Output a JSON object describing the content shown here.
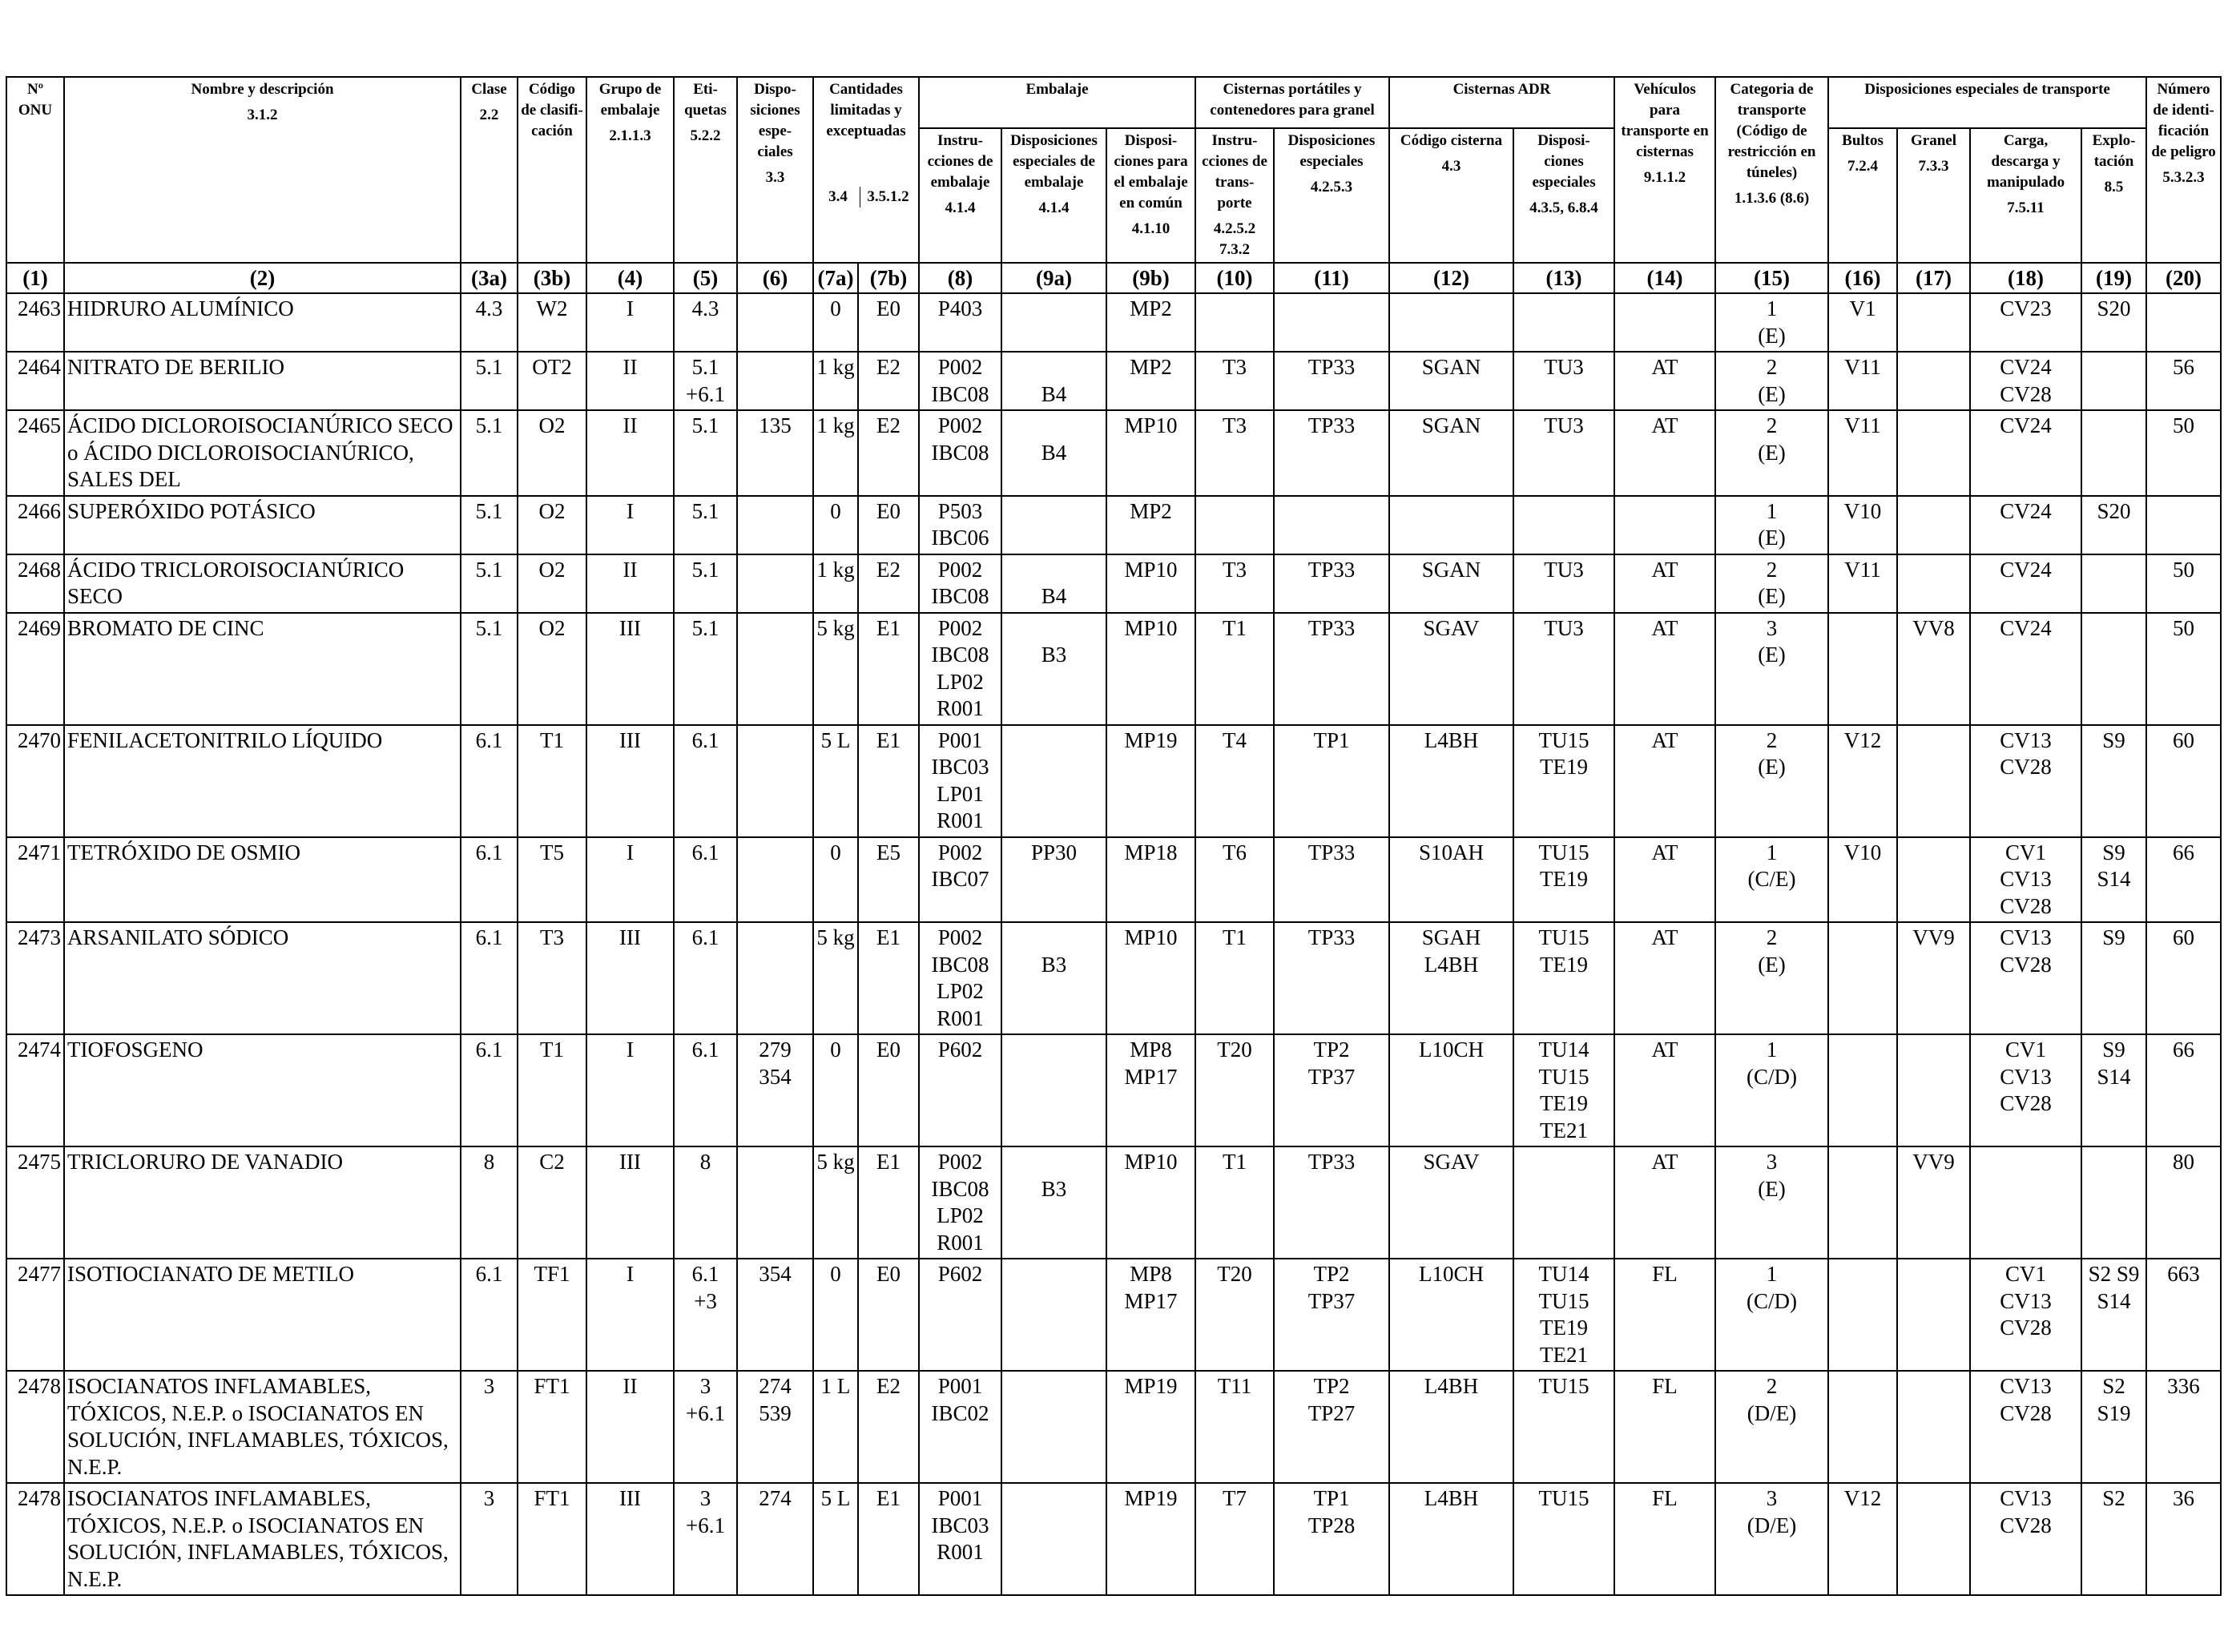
{
  "headers": {
    "onu": "Nº ONU",
    "nombre": "Nombre y descripción",
    "clase": "Clase",
    "codigo": "Código de clasifi- cación",
    "grupo": "Grupo de embalaje",
    "etiquetas": "Eti- quetas",
    "disposiciones": "Dispo- siciones espe- ciales",
    "cantidades": "Cantidades limitadas y exceptuadas",
    "embalaje": "Embalaje",
    "instrucciones": "Instru- cciones de embalaje",
    "disp_embalaje": "Disposiciones especiales de embalaje",
    "disp_comun": "Disposi- ciones para el embalaje en común",
    "cisternas_portatiles": "Cisternas portátiles y contenedores para granel",
    "instr_transporte": "Instru- cciones de trans- porte",
    "disp_especiales": "Disposiciones especiales",
    "cisternas_adr": "Cisternas ADR",
    "codigo_cisterna": "Código cisterna",
    "disp_cisterna": "Disposi- ciones especiales",
    "vehiculos": "Vehículos para transporte en cisternas",
    "categoria": "Categoria de transporte (Código de restricción en túneles)",
    "disp_transporte": "Disposiciones especiales de transporte",
    "bultos": "Bultos",
    "granel": "Granel",
    "carga": "Carga, descarga y manipulado",
    "explotacion": "Explo- tación",
    "numero_peligro": "Número de identi- ficación de peligro"
  },
  "refs": [
    "",
    "3.1.2",
    "2.2",
    "",
    "2.1.1.3",
    "5.2.2",
    "3.3",
    "3.4",
    "3.5.1.2",
    "4.1.4",
    "4.1.4",
    "4.1.10",
    "4.2.5.2 7.3.2",
    "4.2.5.3",
    "4.3",
    "4.3.5, 6.8.4",
    "9.1.1.2",
    "1.1.3.6 (8.6)",
    "7.2.4",
    "7.3.3",
    "7.5.11",
    "8.5",
    "5.3.2.3"
  ],
  "colnums": [
    "(1)",
    "(2)",
    "(3a)",
    "(3b)",
    "(4)",
    "(5)",
    "(6)",
    "(7a)",
    "(7b)",
    "(8)",
    "(9a)",
    "(9b)",
    "(10)",
    "(11)",
    "(12)",
    "(13)",
    "(14)",
    "(15)",
    "(16)",
    "(17)",
    "(18)",
    "(19)",
    "(20)"
  ],
  "rows": [
    [
      "2463",
      "HIDRURO ALUMÍNICO",
      "4.3",
      "W2",
      "I",
      "4.3",
      "",
      "0",
      "E0",
      "P403",
      "",
      "MP2",
      "",
      "",
      "",
      "",
      "",
      "1\n(E)",
      "V1",
      "",
      "CV23",
      "S20",
      ""
    ],
    [
      "2464",
      "NITRATO DE BERILIO",
      "5.1",
      "OT2",
      "II",
      "5.1\n+6.1",
      "",
      "1 kg",
      "E2",
      "P002\nIBC08",
      "\nB4",
      "MP2",
      "T3",
      "TP33",
      "SGAN",
      "TU3",
      "AT",
      "2\n(E)",
      "V11",
      "",
      "CV24\nCV28",
      "",
      "56"
    ],
    [
      "2465",
      "ÁCIDO DICLOROISOCIANÚRICO SECO o ÁCIDO DICLOROISOCIANÚRICO, SALES DEL",
      "5.1",
      "O2",
      "II",
      "5.1",
      "135",
      "1 kg",
      "E2",
      "P002\nIBC08",
      "\nB4",
      "MP10",
      "T3",
      "TP33",
      "SGAN",
      "TU3",
      "AT",
      "2\n(E)",
      "V11",
      "",
      "CV24",
      "",
      "50"
    ],
    [
      "2466",
      "SUPERÓXIDO POTÁSICO",
      "5.1",
      "O2",
      "I",
      "5.1",
      "",
      "0",
      "E0",
      "P503\nIBC06",
      "",
      "MP2",
      "",
      "",
      "",
      "",
      "",
      "1\n(E)",
      "V10",
      "",
      "CV24",
      "S20",
      ""
    ],
    [
      "2468",
      "ÁCIDO TRICLOROISOCIANÚRICO SECO",
      "5.1",
      "O2",
      "II",
      "5.1",
      "",
      "1 kg",
      "E2",
      "P002\nIBC08",
      "\nB4",
      "MP10",
      "T3",
      "TP33",
      "SGAN",
      "TU3",
      "AT",
      "2\n(E)",
      "V11",
      "",
      "CV24",
      "",
      "50"
    ],
    [
      "2469",
      "BROMATO DE CINC",
      "5.1",
      "O2",
      "III",
      "5.1",
      "",
      "5 kg",
      "E1",
      "P002\nIBC08\nLP02\nR001",
      "\nB3",
      "MP10",
      "T1",
      "TP33",
      "SGAV",
      "TU3",
      "AT",
      "3\n(E)",
      "",
      "VV8",
      "CV24",
      "",
      "50"
    ],
    [
      "2470",
      "FENILACETONITRILO LÍQUIDO",
      "6.1",
      "T1",
      "III",
      "6.1",
      "",
      "5 L",
      "E1",
      "P001\nIBC03\nLP01\nR001",
      "",
      "MP19",
      "T4",
      "TP1",
      "L4BH",
      "TU15\nTE19",
      "AT",
      "2\n(E)",
      "V12",
      "",
      "CV13\nCV28",
      "S9",
      "60"
    ],
    [
      "2471",
      "TETRÓXIDO DE OSMIO",
      "6.1",
      "T5",
      "I",
      "6.1",
      "",
      "0",
      "E5",
      "P002\nIBC07",
      "PP30",
      "MP18",
      "T6",
      "TP33",
      "S10AH",
      "TU15\nTE19",
      "AT",
      "1\n(C/E)",
      "V10",
      "",
      "CV1\nCV13\nCV28",
      "S9\nS14",
      "66"
    ],
    [
      "2473",
      "ARSANILATO SÓDICO",
      "6.1",
      "T3",
      "III",
      "6.1",
      "",
      "5 kg",
      "E1",
      "P002\nIBC08\nLP02\nR001",
      "\nB3",
      "MP10",
      "T1",
      "TP33",
      "SGAH\nL4BH",
      "TU15\nTE19",
      "AT",
      "2\n(E)",
      "",
      "VV9",
      "CV13\nCV28",
      "S9",
      "60"
    ],
    [
      "2474",
      "TIOFOSGENO",
      "6.1",
      "T1",
      "I",
      "6.1",
      "279\n354",
      "0",
      "E0",
      "P602",
      "",
      "MP8\nMP17",
      "T20",
      "TP2\nTP37",
      "L10CH",
      "TU14\nTU15\nTE19\nTE21",
      "AT",
      "1\n(C/D)",
      "",
      "",
      "CV1\nCV13\nCV28",
      "S9\nS14",
      "66"
    ],
    [
      "2475",
      "TRICLORURO DE VANADIO",
      "8",
      "C2",
      "III",
      "8",
      "",
      "5 kg",
      "E1",
      "P002\nIBC08\nLP02\nR001",
      "\nB3",
      "MP10",
      "T1",
      "TP33",
      "SGAV",
      "",
      "AT",
      "3\n(E)",
      "",
      "VV9",
      "",
      "",
      "80"
    ],
    [
      "2477",
      "ISOTIOCIANATO DE METILO",
      "6.1",
      "TF1",
      "I",
      "6.1\n+3",
      "354",
      "0",
      "E0",
      "P602",
      "",
      "MP8\nMP17",
      "T20",
      "TP2\nTP37",
      "L10CH",
      "TU14\nTU15\nTE19\nTE21",
      "FL",
      "1\n(C/D)",
      "",
      "",
      "CV1\nCV13\nCV28",
      "S2 S9\nS14",
      "663"
    ],
    [
      "2478",
      "ISOCIANATOS INFLAMABLES, TÓXICOS, N.E.P. o ISOCIANATOS EN SOLUCIÓN, INFLAMABLES, TÓXICOS, N.E.P.",
      "3",
      "FT1",
      "II",
      "3\n+6.1",
      "274\n539",
      "1 L",
      "E2",
      "P001\nIBC02",
      "",
      "MP19",
      "T11",
      "TP2\nTP27",
      "L4BH",
      "TU15",
      "FL",
      "2\n(D/E)",
      "",
      "",
      "CV13\nCV28",
      "S2\nS19",
      "336"
    ],
    [
      "2478",
      "ISOCIANATOS INFLAMABLES, TÓXICOS, N.E.P. o ISOCIANATOS EN SOLUCIÓN, INFLAMABLES, TÓXICOS, N.E.P.",
      "3",
      "FT1",
      "III",
      "3\n+6.1",
      "274",
      "5 L",
      "E1",
      "P001\nIBC03\nR001",
      "",
      "MP19",
      "T7",
      "TP1\nTP28",
      "L4BH",
      "TU15",
      "FL",
      "3\n(D/E)",
      "V12",
      "",
      "CV13\nCV28",
      "S2",
      "36"
    ]
  ]
}
